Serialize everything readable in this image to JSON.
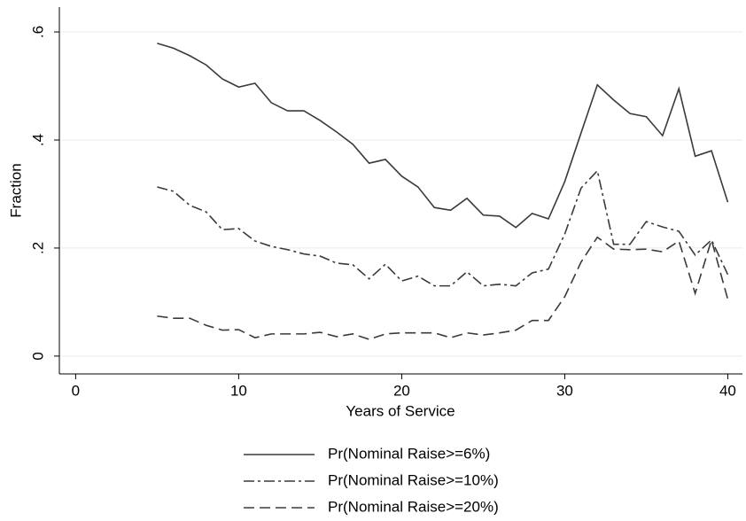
{
  "chart_data": {
    "type": "line",
    "x": [
      5,
      6,
      7,
      8,
      9,
      10,
      11,
      12,
      13,
      14,
      15,
      16,
      17,
      18,
      19,
      20,
      21,
      22,
      23,
      24,
      25,
      26,
      27,
      28,
      29,
      30,
      31,
      32,
      33,
      34,
      35,
      36,
      37,
      38,
      39,
      40
    ],
    "series": [
      {
        "name": "Pr(Nominal Raise>=6%)",
        "color": "#3a3a3a",
        "dash": "solid",
        "values": [
          0.579,
          0.57,
          0.556,
          0.539,
          0.513,
          0.498,
          0.505,
          0.469,
          0.454,
          0.454,
          0.436,
          0.415,
          0.392,
          0.357,
          0.364,
          0.333,
          0.313,
          0.275,
          0.27,
          0.292,
          0.261,
          0.259,
          0.238,
          0.264,
          0.254,
          0.323,
          0.413,
          0.502,
          0.474,
          0.449,
          0.443,
          0.408,
          0.495,
          0.37,
          0.38,
          0.285
        ]
      },
      {
        "name": "Pr(Nominal Raise>=10%)",
        "color": "#3a3a3a",
        "dash": "dashdot",
        "values": [
          0.313,
          0.305,
          0.279,
          0.267,
          0.234,
          0.236,
          0.213,
          0.203,
          0.197,
          0.189,
          0.185,
          0.172,
          0.169,
          0.143,
          0.17,
          0.139,
          0.148,
          0.13,
          0.13,
          0.156,
          0.13,
          0.133,
          0.13,
          0.154,
          0.161,
          0.226,
          0.311,
          0.343,
          0.207,
          0.207,
          0.249,
          0.239,
          0.231,
          0.187,
          0.215,
          0.151
        ]
      },
      {
        "name": "Pr(Nominal Raise>=20%)",
        "color": "#3a3a3a",
        "dash": "dash",
        "values": [
          0.074,
          0.07,
          0.07,
          0.057,
          0.048,
          0.049,
          0.034,
          0.041,
          0.041,
          0.041,
          0.044,
          0.036,
          0.041,
          0.031,
          0.041,
          0.043,
          0.043,
          0.043,
          0.034,
          0.043,
          0.039,
          0.043,
          0.048,
          0.066,
          0.066,
          0.11,
          0.174,
          0.22,
          0.198,
          0.197,
          0.198,
          0.193,
          0.213,
          0.116,
          0.215,
          0.105
        ]
      }
    ],
    "x_label": "Years of Service",
    "y_label": "Fraction",
    "xlim": [
      -1,
      40.9
    ],
    "xticks": [
      0,
      10,
      20,
      30,
      40
    ],
    "ylim": [
      -0.033,
      0.646
    ],
    "yticks": [
      {
        "value": 0,
        "label": "0"
      },
      {
        "value": 0.2,
        "label": ".2"
      },
      {
        "value": 0.4,
        "label": ".4"
      },
      {
        "value": 0.6,
        "label": ".6"
      }
    ],
    "grid": true,
    "grid_color": "#e3eef0",
    "legend": "bottom"
  }
}
